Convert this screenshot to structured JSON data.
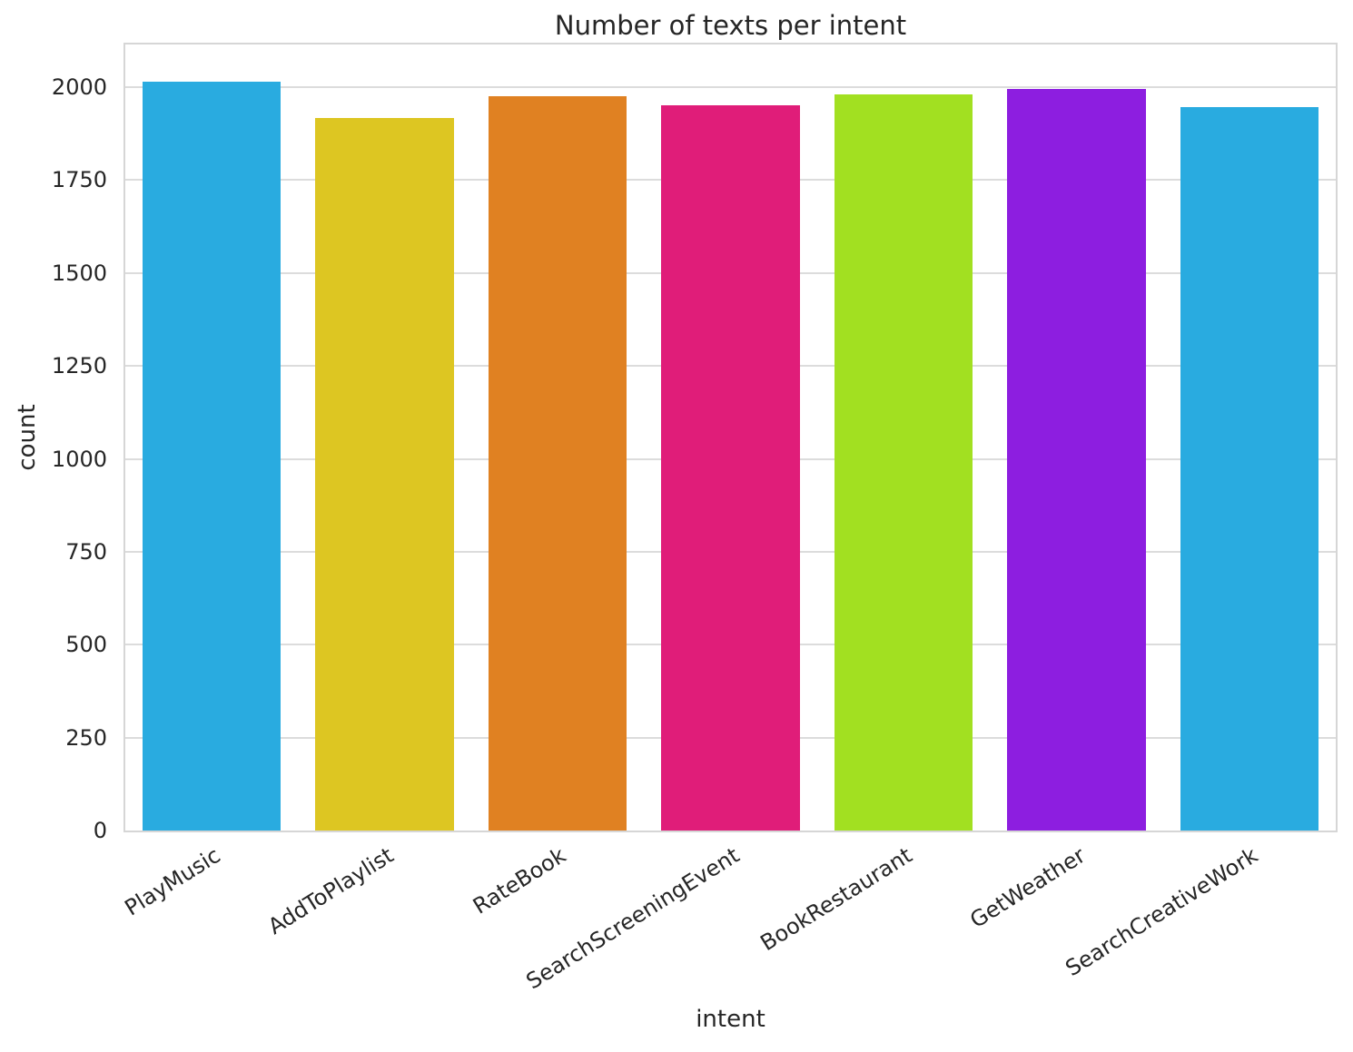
{
  "chart_data": {
    "type": "bar",
    "title": "Number of texts per intent",
    "xlabel": "intent",
    "ylabel": "count",
    "categories": [
      "PlayMusic",
      "AddToPlaylist",
      "RateBook",
      "SearchScreeningEvent",
      "BookRestaurant",
      "GetWeather",
      "SearchCreativeWork"
    ],
    "values": [
      2014,
      1918,
      1976,
      1952,
      1981,
      1996,
      1947
    ],
    "bar_colors": [
      "#29abe0",
      "#ddc622",
      "#e08122",
      "#e01d79",
      "#a2e021",
      "#8d1ee0",
      "#29abe0"
    ],
    "yticks": [
      0,
      250,
      500,
      750,
      1000,
      1250,
      1500,
      1750,
      2000
    ],
    "ylim": [
      0,
      2115
    ],
    "grid": "horizontal",
    "grid_color": "#dcdcdc",
    "spine_color": "#d6d6d6",
    "text_color": "#262626",
    "background": "#ffffff",
    "xtick_rotation_deg": 32,
    "bar_width_fraction": 0.8,
    "legend": false
  }
}
